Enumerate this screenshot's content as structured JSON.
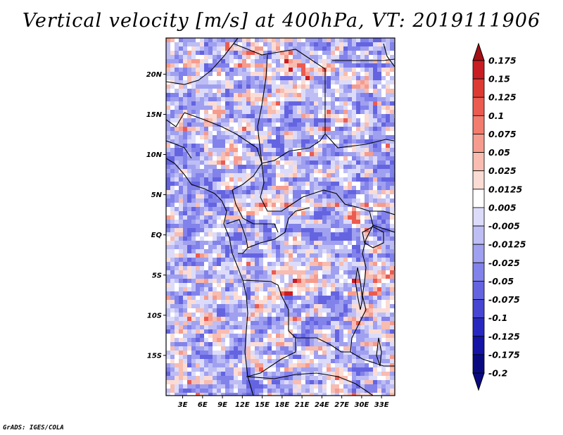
{
  "title": "Vertical velocity [m/s] at 400hPa, VT: 2019111906",
  "credit": "GrADS: IGES/COLA",
  "lat_ticks": [
    "20N",
    "15N",
    "10N",
    "5N",
    "EQ",
    "5S",
    "10S",
    "15S"
  ],
  "lat_values": [
    20,
    15,
    10,
    5,
    0,
    -5,
    -10,
    -15
  ],
  "lon_ticks": [
    "3E",
    "6E",
    "9E",
    "12E",
    "15E",
    "18E",
    "21E",
    "24E",
    "27E",
    "30E",
    "33E"
  ],
  "lon_values": [
    3,
    6,
    9,
    12,
    15,
    18,
    21,
    24,
    27,
    30,
    33
  ],
  "map_extent": {
    "lon": [
      0.5,
      35
    ],
    "lat": [
      -20,
      24.5
    ]
  },
  "colorbar": {
    "levels": [
      "0.175",
      "0.15",
      "0.125",
      "0.1",
      "0.075",
      "0.05",
      "0.025",
      "0.0125",
      "0.005",
      "-0.005",
      "-0.0125",
      "-0.025",
      "-0.05",
      "-0.075",
      "-0.1",
      "-0.125",
      "-0.175",
      "-0.2"
    ],
    "colors": [
      "#a50f15",
      "#c81d22",
      "#dd3a34",
      "#ec5b50",
      "#f27c6e",
      "#f59c8e",
      "#f8bcb0",
      "#fbdcd4",
      "#ffffff",
      "#dcdcfa",
      "#bebef5",
      "#a0a0f0",
      "#8282eb",
      "#6464e1",
      "#4646d2",
      "#2828c0",
      "#1414a5",
      "#0a0a80"
    ]
  }
}
